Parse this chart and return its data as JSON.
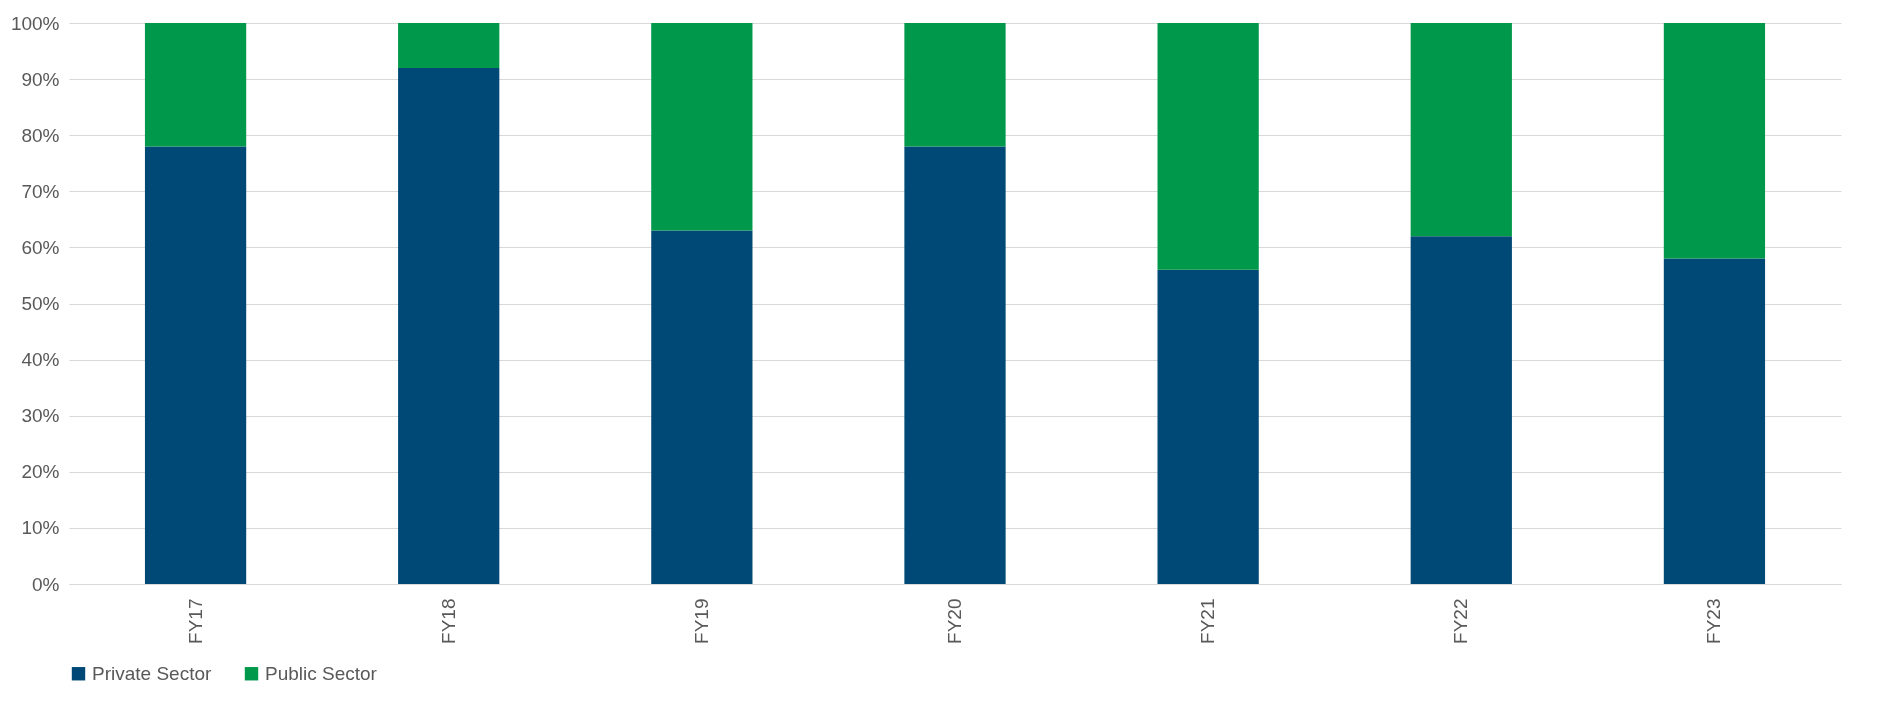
{
  "chart_data": {
    "type": "bar",
    "stacked": true,
    "categories": [
      "FY17",
      "FY18",
      "FY19",
      "FY20",
      "FY21",
      "FY22",
      "FY23"
    ],
    "series": [
      {
        "name": "Private Sector",
        "color": "#004876",
        "values": [
          78,
          92,
          63,
          78,
          56,
          62,
          58
        ]
      },
      {
        "name": "Public Sector",
        "color": "#00984a",
        "values": [
          22,
          8,
          37,
          22,
          44,
          38,
          42
        ]
      }
    ],
    "ylim": [
      0,
      100
    ],
    "yticks": [
      {
        "value": 0,
        "label": "0%"
      },
      {
        "value": 10,
        "label": "10%"
      },
      {
        "value": 20,
        "label": "20%"
      },
      {
        "value": 30,
        "label": "30%"
      },
      {
        "value": 40,
        "label": "40%"
      },
      {
        "value": 50,
        "label": "50%"
      },
      {
        "value": 60,
        "label": "60%"
      },
      {
        "value": 70,
        "label": "70%"
      },
      {
        "value": 80,
        "label": "80%"
      },
      {
        "value": 90,
        "label": "90%"
      },
      {
        "value": 100,
        "label": "100%"
      }
    ],
    "grid": "y",
    "legend": "bottom"
  }
}
